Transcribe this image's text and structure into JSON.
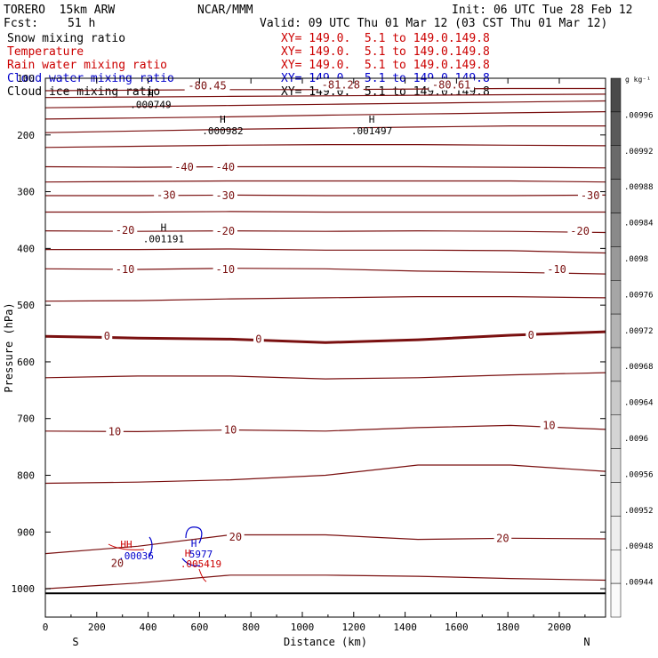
{
  "header": {
    "model_name": "TORERO  15km ARW",
    "center": "NCAR/MMM",
    "init": "Init: 06 UTC Tue 28 Feb 12",
    "fcst_label": "Fcst:",
    "fcst_value": "51 h",
    "valid": "Valid: 09 UTC Thu 01 Mar 12 (03 CST Thu 01 Mar 12)"
  },
  "fields": [
    {
      "name": "Snow mixing ratio",
      "xy": "XY= 149.0.  5.1 to 149.0.149.8",
      "color": "#000000"
    },
    {
      "name": "Temperature",
      "xy": "XY= 149.0.  5.1 to 149.0.149.8",
      "color": "#cc0000"
    },
    {
      "name": "Rain water mixing ratio",
      "xy": "XY= 149.0.  5.1 to 149.0.149.8",
      "color": "#cc0000"
    },
    {
      "name": "Cloud water mixing ratio",
      "xy": "XY= 149.0.  5.1 to 149.0.149.8",
      "color": "#0000cc"
    },
    {
      "name": "Cloud ice mixing ratio",
      "xy": "XY= 149.0.  5.1 to 149.0.149.8",
      "color": "#000000"
    }
  ],
  "colorbar": {
    "unit": "g kg⁻¹",
    "ticks": [
      ".00996",
      ".00992",
      ".00988",
      ".00984",
      ".0098",
      ".00976",
      ".00972",
      ".00968",
      ".00964",
      ".0096",
      ".00956",
      ".00952",
      ".00948",
      ".00944"
    ],
    "colors": [
      "#4a4a4a",
      "#5a5a5a",
      "#6a6a6a",
      "#7a7a7a",
      "#8a8a8a",
      "#999999",
      "#a6a6a6",
      "#b3b3b3",
      "#bfbfbf",
      "#cacaca",
      "#d4d4d4",
      "#dddddd",
      "#e6e6e6",
      "#eeeeee",
      "#f4f4f4",
      "#fafafa"
    ]
  },
  "chart_data": {
    "type": "line",
    "xlabel": "Distance (km)",
    "ylabel": "Pressure (hPa)",
    "x_ticks": [
      0,
      200,
      400,
      600,
      800,
      1000,
      1200,
      1400,
      1600,
      1800,
      2000
    ],
    "y_ticks": [
      100,
      200,
      300,
      400,
      500,
      600,
      700,
      800,
      900,
      1000
    ],
    "xlim": [
      0,
      2180
    ],
    "ylim": [
      100,
      1050
    ],
    "x_left_label": "S",
    "x_right_label": "N",
    "temperature_contour_labels": [
      {
        "text": "-80.45",
        "x": 630,
        "p": 113
      },
      {
        "text": "-81.28",
        "x": 1150,
        "p": 112
      },
      {
        "text": "-80.61",
        "x": 1580,
        "p": 112
      },
      {
        "text": "-40",
        "x": 540,
        "p": 257
      },
      {
        "text": "-40",
        "x": 700,
        "p": 257
      },
      {
        "text": "-30",
        "x": 470,
        "p": 306
      },
      {
        "text": "-30",
        "x": 700,
        "p": 307
      },
      {
        "text": "-30",
        "x": 2120,
        "p": 307
      },
      {
        "text": "-20",
        "x": 310,
        "p": 368
      },
      {
        "text": "-20",
        "x": 700,
        "p": 370
      },
      {
        "text": "-20",
        "x": 2080,
        "p": 370
      },
      {
        "text": "-10",
        "x": 310,
        "p": 437
      },
      {
        "text": "-10",
        "x": 700,
        "p": 437
      },
      {
        "text": "-10",
        "x": 1990,
        "p": 437
      },
      {
        "text": "0",
        "x": 240,
        "p": 555
      },
      {
        "text": "0",
        "x": 830,
        "p": 560
      },
      {
        "text": "0",
        "x": 1890,
        "p": 553
      },
      {
        "text": "10",
        "x": 270,
        "p": 723
      },
      {
        "text": "10",
        "x": 720,
        "p": 720
      },
      {
        "text": "10",
        "x": 1960,
        "p": 712
      },
      {
        "text": "20",
        "x": 740,
        "p": 909
      },
      {
        "text": "20",
        "x": 1780,
        "p": 911
      },
      {
        "text": "20",
        "x": 280,
        "p": 955
      }
    ],
    "temperature_levels": [
      {
        "p": [
          122,
          121,
          120,
          120,
          119,
          118,
          118
        ]
      },
      {
        "p": [
          134,
          133,
          132,
          131,
          130,
          129,
          128
        ]
      },
      {
        "p": [
          152,
          150,
          148,
          146,
          144,
          142,
          140
        ]
      },
      {
        "p": [
          172,
          170,
          168,
          165,
          163,
          161,
          159
        ]
      },
      {
        "p": [
          196,
          193,
          190,
          188,
          186,
          184,
          184
        ]
      },
      {
        "p": [
          222,
          220,
          218,
          217,
          217,
          218,
          219
        ]
      },
      {
        "p": [
          256,
          257,
          256,
          256,
          256,
          257,
          258
        ]
      },
      {
        "p": [
          283,
          282,
          281,
          281,
          281,
          281,
          283
        ]
      },
      {
        "p": [
          307,
          307,
          306,
          307,
          307,
          307,
          306
        ]
      },
      {
        "p": [
          336,
          336,
          335,
          336,
          336,
          336,
          336
        ]
      },
      {
        "p": [
          369,
          370,
          369,
          370,
          369,
          370,
          372
        ]
      },
      {
        "p": [
          402,
          402,
          401,
          403,
          403,
          404,
          408
        ]
      },
      {
        "p": [
          436,
          437,
          435,
          436,
          440,
          442,
          445
        ]
      },
      {
        "p": [
          493,
          492,
          489,
          487,
          485,
          485,
          487
        ]
      },
      {
        "p": [
          555,
          558,
          560,
          566,
          561,
          553,
          547
        ]
      },
      {
        "p": [
          628,
          625,
          625,
          630,
          628,
          623,
          619
        ]
      },
      {
        "p": [
          722,
          723,
          720,
          722,
          716,
          712,
          719
        ]
      },
      {
        "p": [
          814,
          812,
          808,
          800,
          782,
          782,
          793
        ]
      },
      {
        "p": [
          938,
          925,
          905,
          905,
          913,
          911,
          912
        ]
      },
      {
        "p": [
          1000,
          990,
          976,
          976,
          978,
          982,
          985
        ]
      }
    ],
    "temperature_levels_x": [
      0,
      360,
      720,
      1090,
      1450,
      1810,
      2180
    ],
    "maxima_labels": [
      {
        "text": "H",
        "x": 410,
        "p": 132,
        "value": ".000749"
      },
      {
        "text": "H",
        "x": 690,
        "p": 178,
        "value": ".000982"
      },
      {
        "text": "H",
        "x": 1270,
        "p": 178,
        "value": ".001497"
      },
      {
        "text": "H",
        "x": 460,
        "p": 369,
        "value": ".001191"
      }
    ],
    "surface_pressure_hpa": 1008
  }
}
